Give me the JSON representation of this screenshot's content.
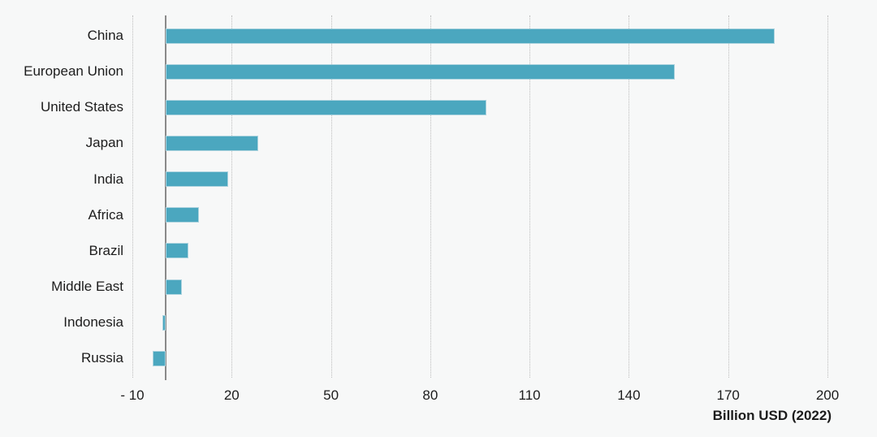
{
  "chart_data": {
    "type": "bar",
    "orientation": "horizontal",
    "title": "",
    "xlabel": "Billion USD (2022)",
    "ylabel": "",
    "categories": [
      "China",
      "European Union",
      "United States",
      "Japan",
      "India",
      "Africa",
      "Brazil",
      "Middle East",
      "Indonesia",
      "Russia"
    ],
    "values": [
      184,
      154,
      97,
      28,
      19,
      10,
      7,
      5,
      -1,
      -4
    ],
    "xlim": [
      -10,
      200
    ],
    "x_ticks": [
      -10,
      20,
      50,
      80,
      110,
      140,
      170,
      200
    ],
    "x_tick_labels": [
      "- 10",
      "20",
      "50",
      "80",
      "110",
      "140",
      "170",
      "200"
    ],
    "grid": "vertical-dotted",
    "legend": "none",
    "colors": {
      "bar_fill": "#4ba7bf",
      "bar_border": "#aed4df",
      "gridline": "#bdbdbd",
      "zero_axis": "#8a8a8a",
      "text": "#1c1c1c",
      "background": "#f7f8f8"
    }
  }
}
